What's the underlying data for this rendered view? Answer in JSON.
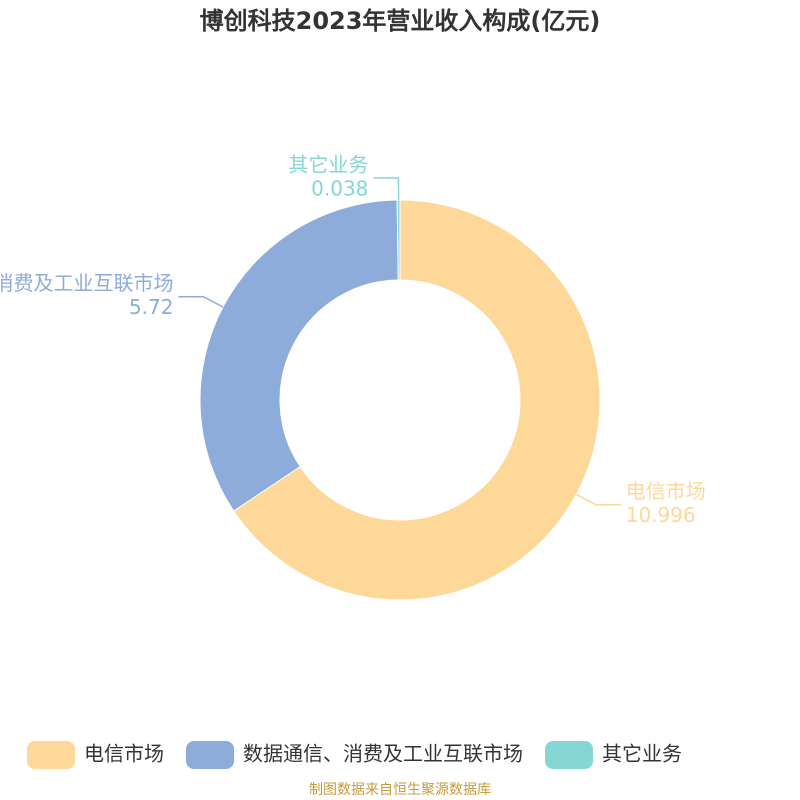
{
  "chart_data": {
    "type": "donut",
    "title": "博创科技2023年营业收入构成(亿元)",
    "categories": [
      "电信市场",
      "数据通信、消费及工业互联市场",
      "其它业务"
    ],
    "values": [
      10.996,
      5.72,
      0.038
    ],
    "colors": [
      "#fed899",
      "#8eacd9",
      "#86d6d6"
    ],
    "source": "制图数据来自恒生聚源数据库"
  }
}
